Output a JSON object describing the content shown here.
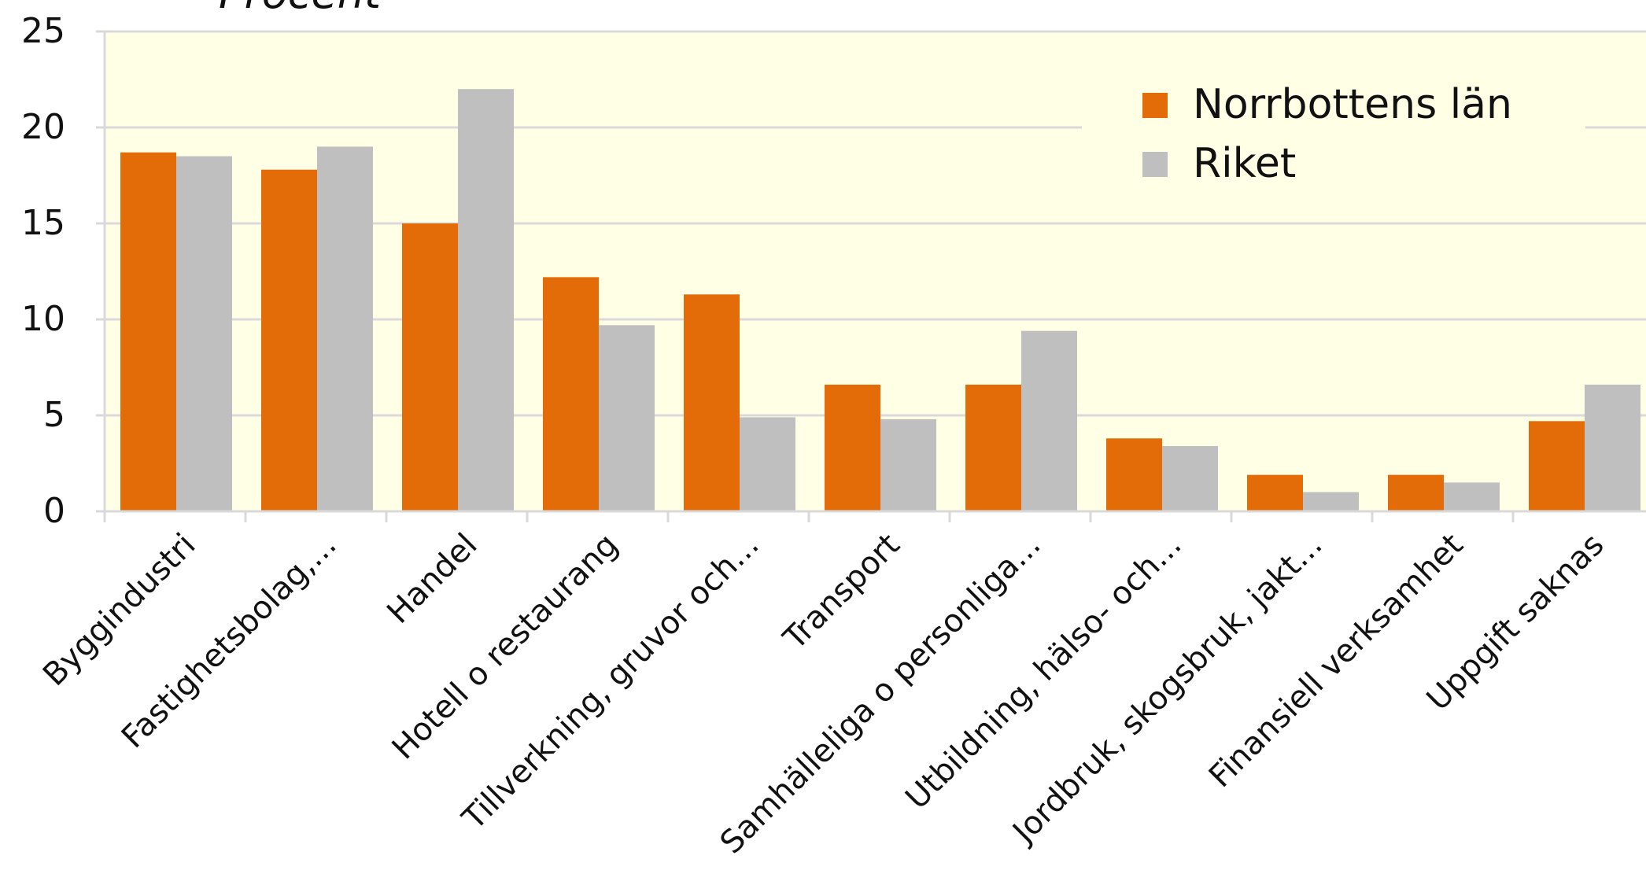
{
  "chart_data": {
    "type": "bar",
    "title": "Procent",
    "categories": [
      "Byggindustri",
      "Fastighetsbolag,...",
      "Handel",
      "Hotell o restaurang",
      "Tillverkning, gruvor och...",
      "Transport",
      "Samhälleliga o personliga...",
      "Utbildning, hälso- och...",
      "Jordbruk, skogsbruk, jakt...",
      "Finansiell verksamhet",
      "Uppgift saknas"
    ],
    "series": [
      {
        "name": "Norrbottens län",
        "color": "#E36C09",
        "values": [
          18.7,
          17.8,
          15.0,
          12.2,
          11.3,
          6.6,
          6.6,
          3.8,
          1.9,
          1.9,
          4.7
        ]
      },
      {
        "name": "Riket",
        "color": "#BFBFBF",
        "values": [
          18.5,
          19.0,
          22.0,
          9.7,
          4.9,
          4.8,
          9.4,
          3.4,
          1.0,
          1.5,
          6.6
        ]
      }
    ],
    "ylim": [
      0,
      25
    ],
    "yticks": [
      0,
      5,
      10,
      15,
      20,
      25
    ],
    "grid": true,
    "legend_position": "top-right",
    "plot_background": "#FFFFE6",
    "xlabel": "",
    "ylabel": ""
  }
}
